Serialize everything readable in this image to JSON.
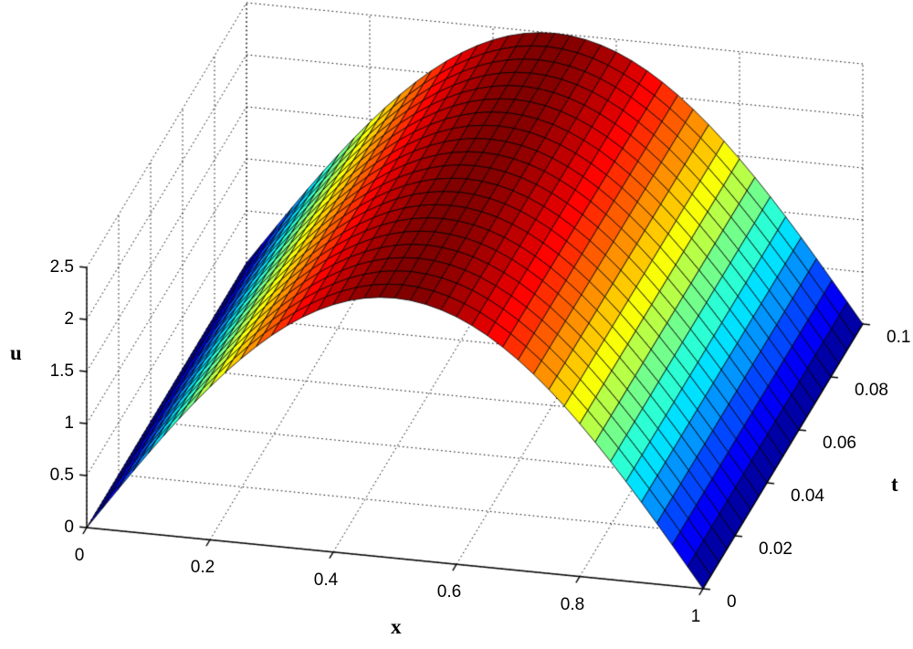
{
  "figure": {
    "background": "#ffffff"
  },
  "chart_data": {
    "type": "surface",
    "title": "",
    "xlabel": "x",
    "ylabel": "t",
    "zlabel": "u",
    "colormap": "jet",
    "grid": true,
    "edge_color": "#000000",
    "x_range": [
      0,
      1
    ],
    "t_range": [
      0,
      0.1
    ],
    "u_range": [
      0,
      2.5
    ],
    "x_ticks": [
      0,
      0.2,
      0.4,
      0.6,
      0.8,
      1
    ],
    "x_tick_labels": [
      "0",
      "0.2",
      "0.4",
      "0.6",
      "0.8",
      "1"
    ],
    "t_ticks": [
      0,
      0.02,
      0.04,
      0.06,
      0.08,
      0.1
    ],
    "t_tick_labels": [
      "0",
      "0.02",
      "0.04",
      "0.06",
      "0.08",
      "0.1"
    ],
    "u_ticks": [
      0,
      0.5,
      1,
      1.5,
      2,
      2.5
    ],
    "u_tick_labels": [
      "0",
      "0.5",
      "1",
      "1.5",
      "2",
      "2.5"
    ],
    "x_samples": [
      0,
      0.025,
      0.05,
      0.075,
      0.1,
      0.125,
      0.15,
      0.175,
      0.2,
      0.225,
      0.25,
      0.275,
      0.3,
      0.325,
      0.35,
      0.375,
      0.4,
      0.425,
      0.45,
      0.475,
      0.5,
      0.525,
      0.55,
      0.575,
      0.6,
      0.625,
      0.65,
      0.675,
      0.7,
      0.725,
      0.75,
      0.775,
      0.8,
      0.825,
      0.85,
      0.875,
      0.9,
      0.925,
      0.95,
      0.975,
      1
    ],
    "t_samples": [
      0,
      0.005,
      0.01,
      0.015,
      0.02,
      0.025,
      0.03,
      0.035,
      0.04,
      0.045,
      0.05,
      0.055,
      0.06,
      0.065,
      0.07,
      0.075,
      0.08,
      0.085,
      0.09,
      0.095,
      0.1
    ],
    "u_constant_in_t": true,
    "u_profile_along_x": [
      0,
      0.196,
      0.391,
      0.584,
      0.773,
      0.957,
      1.135,
      1.306,
      1.469,
      1.624,
      1.768,
      1.901,
      2.023,
      2.132,
      2.228,
      2.31,
      2.378,
      2.431,
      2.469,
      2.492,
      2.5,
      2.492,
      2.469,
      2.431,
      2.378,
      2.31,
      2.228,
      2.132,
      2.023,
      1.901,
      1.768,
      1.624,
      1.469,
      1.306,
      1.135,
      0.957,
      0.773,
      0.584,
      0.391,
      0.196,
      0
    ]
  }
}
